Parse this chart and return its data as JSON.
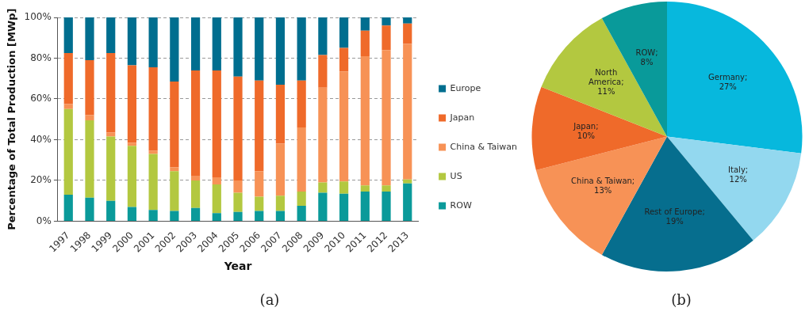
{
  "chart_data": [
    {
      "type": "bar",
      "stacked": true,
      "categories": [
        "1997",
        "1998",
        "1999",
        "2000",
        "2001",
        "2002",
        "2003",
        "2004",
        "2005",
        "2006",
        "2007",
        "2008",
        "2009",
        "2010",
        "2011",
        "2012",
        "2013"
      ],
      "series": [
        {
          "name": "ROW",
          "color": "#0a9a9a",
          "values": [
            13,
            11.5,
            10,
            7,
            5.5,
            5,
            6.5,
            4,
            4.5,
            5,
            5,
            7.5,
            14,
            13.5,
            14.5,
            14.5,
            18.5
          ]
        },
        {
          "name": "US",
          "color": "#b3c840",
          "values": [
            42,
            38,
            31.5,
            30,
            27.5,
            19.5,
            13.5,
            14,
            9.5,
            7,
            7.5,
            7,
            5,
            6,
            3,
            3,
            2
          ]
        },
        {
          "name": "China & Taiwan",
          "color": "#f79256",
          "values": [
            2.5,
            2.5,
            2,
            1.5,
            1.5,
            2,
            2,
            3.5,
            6,
            12.5,
            25.5,
            31.5,
            46.5,
            54,
            63.5,
            66.5,
            66.5
          ]
        },
        {
          "name": "Japan",
          "color": "#ef6a2a",
          "values": [
            25,
            27,
            39,
            38,
            41,
            42,
            52,
            52.5,
            51,
            44.5,
            29,
            23,
            16,
            11.5,
            12.5,
            12,
            10
          ]
        },
        {
          "name": "Europe",
          "color": "#006e8f",
          "values": [
            17.5,
            21,
            17.5,
            23.5,
            24.5,
            31.5,
            26,
            26,
            29,
            31,
            33,
            31,
            18.5,
            15,
            6.5,
            4,
            3
          ]
        }
      ],
      "ylim": [
        0,
        100
      ],
      "yticks": [
        {
          "value": 0,
          "label": "0%"
        },
        {
          "value": 20,
          "label": "20%"
        },
        {
          "value": 40,
          "label": "40%"
        },
        {
          "value": 60,
          "label": "60%"
        },
        {
          "value": 80,
          "label": "80%"
        },
        {
          "value": 100,
          "label": "100%"
        }
      ],
      "xlabel": "Year",
      "ylabel": "Percentage of Total Production [MWp]",
      "grid": "y",
      "legend": "right",
      "annotations": [
        "(a)"
      ]
    },
    {
      "type": "pie",
      "categories": [
        "Germany",
        "Italy",
        "Rest of Europe",
        "China & Taiwan",
        "Japan",
        "North America",
        "ROW"
      ],
      "values": [
        27,
        12,
        19,
        13,
        10,
        11,
        8
      ],
      "colors": [
        "#07b8dd",
        "#93d8ef",
        "#066e8e",
        "#f79256",
        "#ef6a2a",
        "#b3c840",
        "#099a9a"
      ],
      "value_labels": [
        ";\n27%",
        ";\n12%",
        ";\n19%",
        ";\n13%",
        ";\n10%",
        ";\n11%",
        ";\n8%"
      ],
      "annotations": [
        "(b)"
      ]
    }
  ]
}
